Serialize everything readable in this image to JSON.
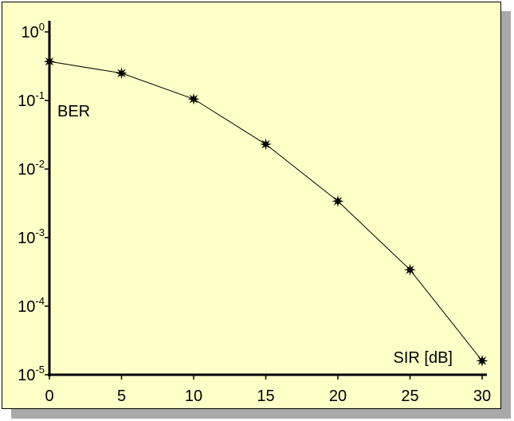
{
  "chart_data": {
    "type": "line",
    "xlabel": "SIR [dB]",
    "ylabel": "BER",
    "x": [
      0,
      5,
      10,
      15,
      20,
      25,
      30
    ],
    "series": [
      {
        "values": [
          0.37,
          0.25,
          0.105,
          0.023,
          0.0034,
          0.00034,
          1.6e-05
        ]
      }
    ],
    "xlim": [
      0,
      30
    ],
    "ylim": [
      1e-05,
      1
    ],
    "yscale": "log",
    "x_ticks": [
      "0",
      "5",
      "10",
      "15",
      "20",
      "25",
      "30"
    ],
    "y_ticks": [
      {
        "base": "10",
        "exp": "0"
      },
      {
        "base": "10",
        "exp": "-1"
      },
      {
        "base": "10",
        "exp": "-2"
      },
      {
        "base": "10",
        "exp": "-3"
      },
      {
        "base": "10",
        "exp": "-4"
      },
      {
        "base": "10",
        "exp": "-5"
      }
    ],
    "grid": false,
    "marker": "star",
    "line_color": "#000000",
    "background_color": "#ffffc8",
    "shadow_color": "#a9a9a9"
  }
}
